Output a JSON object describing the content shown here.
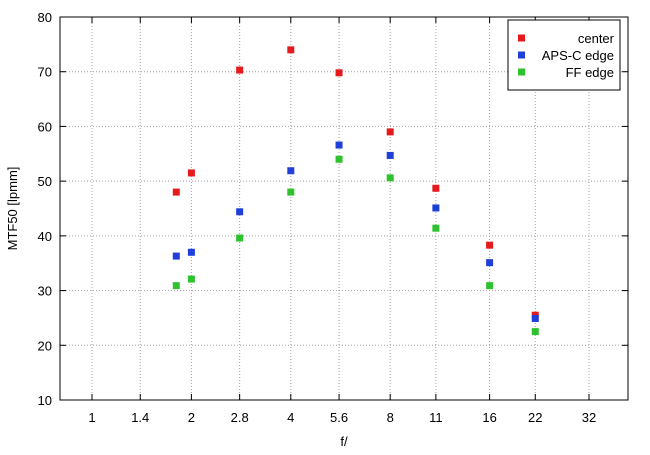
{
  "chart_data": {
    "type": "scatter",
    "xlabel": "f/",
    "ylabel": "MTF50 [lpmm]",
    "x_scale": "log2",
    "x_ticks": [
      1,
      1.4,
      2,
      2.8,
      4,
      5.6,
      8,
      11,
      16,
      22,
      32
    ],
    "x_tick_labels": [
      "1",
      "1.4",
      "2",
      "2.8",
      "4",
      "5.6",
      "8",
      "11",
      "16",
      "22",
      "32"
    ],
    "xlim": [
      0.8,
      42
    ],
    "ylim": [
      10,
      80
    ],
    "y_ticks": [
      10,
      20,
      30,
      40,
      50,
      60,
      70,
      80
    ],
    "y_tick_labels": [
      "10",
      "20",
      "30",
      "40",
      "50",
      "60",
      "70",
      "80"
    ],
    "grid": true,
    "legend_position": "top-right",
    "series": [
      {
        "name": "center",
        "color": "#e41a1c",
        "x": [
          1.8,
          2,
          2.8,
          4,
          5.6,
          8,
          11,
          16,
          22
        ],
        "y": [
          48.0,
          51.5,
          70.3,
          74.0,
          69.8,
          59.0,
          48.7,
          38.3,
          25.5
        ]
      },
      {
        "name": "APS-C edge",
        "color": "#1f3fd8",
        "x": [
          1.8,
          2,
          2.8,
          4,
          5.6,
          8,
          11,
          16,
          22
        ],
        "y": [
          36.3,
          37.0,
          44.4,
          51.9,
          56.6,
          54.7,
          45.1,
          35.1,
          24.9
        ]
      },
      {
        "name": "FF edge",
        "color": "#2fc22f",
        "x": [
          1.8,
          2,
          2.8,
          4,
          5.6,
          8,
          11,
          16,
          22
        ],
        "y": [
          30.9,
          32.1,
          39.6,
          48.0,
          54.0,
          50.6,
          41.4,
          30.9,
          22.5
        ]
      }
    ]
  }
}
